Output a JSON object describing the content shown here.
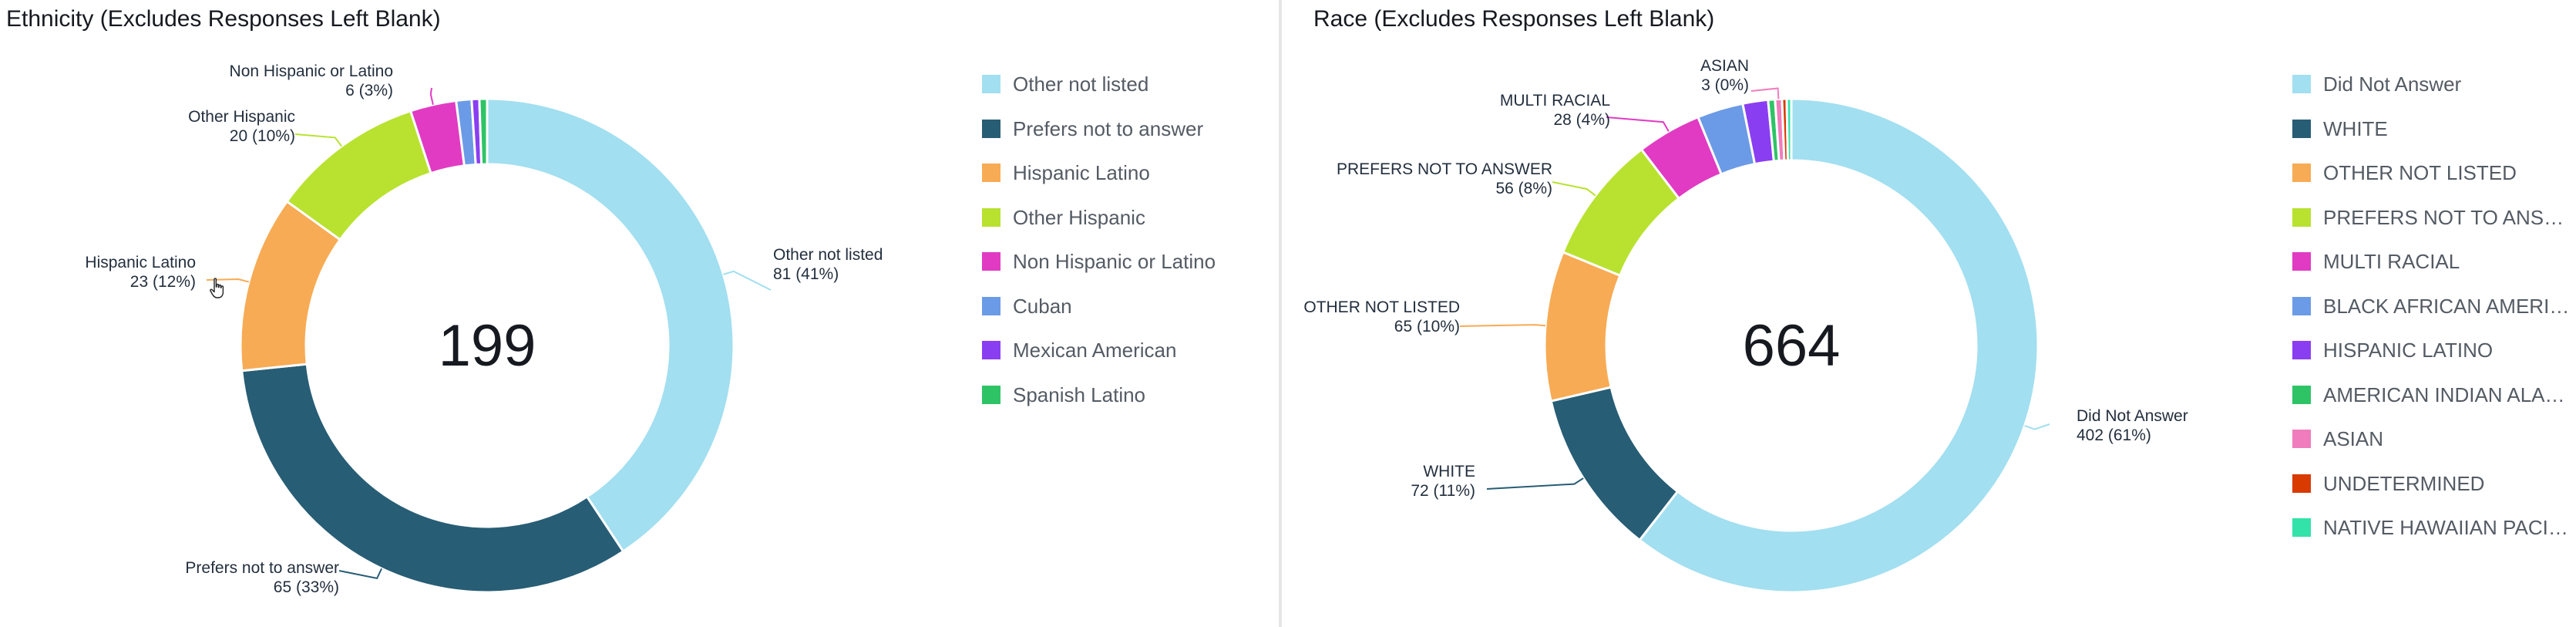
{
  "panels": [
    {
      "title": "Ethnicity (Excludes Responses Left Blank)",
      "total": "199",
      "chart_data": {
        "type": "pie",
        "subtype": "donut",
        "title": "Ethnicity (Excludes Responses Left Blank)",
        "center_label": "199",
        "legend_position": "right",
        "slices": [
          {
            "name": "Other not listed",
            "value": 81,
            "percent": 41,
            "color": "#a2dff0"
          },
          {
            "name": "Prefers not to answer",
            "value": 65,
            "percent": 33,
            "color": "#275d75"
          },
          {
            "name": "Hispanic Latino",
            "value": 23,
            "percent": 12,
            "color": "#f7ab54"
          },
          {
            "name": "Other Hispanic",
            "value": 20,
            "percent": 10,
            "color": "#b8e22f"
          },
          {
            "name": "Non Hispanic or Latino",
            "value": 6,
            "percent": 3,
            "color": "#e13bc3"
          },
          {
            "name": "Cuban",
            "value": 2,
            "percent": 1,
            "color": "#6b9be6"
          },
          {
            "name": "Mexican American",
            "value": 1,
            "percent": 1,
            "color": "#8a3ef2"
          },
          {
            "name": "Spanish Latino",
            "value": 1,
            "percent": 1,
            "color": "#2ec466"
          }
        ],
        "callouts": [
          {
            "slice": "Other not listed",
            "line1": "Other not listed",
            "line2": "81 (41%)"
          },
          {
            "slice": "Prefers not to answer",
            "line1": "Prefers not to answer",
            "line2": "65 (33%)"
          },
          {
            "slice": "Hispanic Latino",
            "line1": "Hispanic Latino",
            "line2": "23 (12%)"
          },
          {
            "slice": "Other Hispanic",
            "line1": "Other Hispanic",
            "line2": "20 (10%)"
          },
          {
            "slice": "Non Hispanic or Latino",
            "line1": "Non Hispanic or Latino",
            "line2": "6 (3%)"
          }
        ]
      }
    },
    {
      "title": "Race (Excludes Responses Left Blank)",
      "total": "664",
      "chart_data": {
        "type": "pie",
        "subtype": "donut",
        "title": "Race (Excludes Responses Left Blank)",
        "center_label": "664",
        "legend_position": "right",
        "slices": [
          {
            "name": "Did Not Answer",
            "value": 402,
            "percent": 61,
            "color": "#a2dff0"
          },
          {
            "name": "WHITE",
            "value": 72,
            "percent": 11,
            "color": "#275d75"
          },
          {
            "name": "OTHER NOT LISTED",
            "value": 65,
            "percent": 10,
            "color": "#f7ab54"
          },
          {
            "name": "PREFERS NOT TO ANSWER",
            "value": 56,
            "percent": 8,
            "color": "#b8e22f"
          },
          {
            "name": "MULTI RACIAL",
            "value": 28,
            "percent": 4,
            "color": "#e13bc3"
          },
          {
            "name": "BLACK AFRICAN AMERIC…",
            "value": 20,
            "percent": 3,
            "color": "#6b9be6"
          },
          {
            "name": "HISPANIC LATINO",
            "value": 11,
            "percent": 2,
            "color": "#8a3ef2"
          },
          {
            "name": "AMERICAN INDIAN ALAS…",
            "value": 3,
            "percent": 0,
            "color": "#2ec466"
          },
          {
            "name": "ASIAN",
            "value": 3,
            "percent": 0,
            "color": "#f07cbd"
          },
          {
            "name": "UNDETERMINED",
            "value": 2,
            "percent": 0,
            "color": "#d83a00"
          },
          {
            "name": "NATIVE HAWAIIAN PACIF…",
            "value": 2,
            "percent": 0,
            "color": "#33e2a9"
          }
        ],
        "callouts": [
          {
            "slice": "Did Not Answer",
            "line1": "Did Not Answer",
            "line2": "402 (61%)"
          },
          {
            "slice": "WHITE",
            "line1": "WHITE",
            "line2": "72 (11%)"
          },
          {
            "slice": "OTHER NOT LISTED",
            "line1": "OTHER NOT LISTED",
            "line2": "65 (10%)"
          },
          {
            "slice": "PREFERS NOT TO ANSWER",
            "line1": "PREFERS NOT TO ANSWER",
            "line2": "56 (8%)"
          },
          {
            "slice": "MULTI RACIAL",
            "line1": "MULTI RACIAL",
            "line2": "28 (4%)"
          },
          {
            "slice": "ASIAN",
            "line1": "ASIAN",
            "line2": "3 (0%)"
          }
        ]
      }
    }
  ]
}
